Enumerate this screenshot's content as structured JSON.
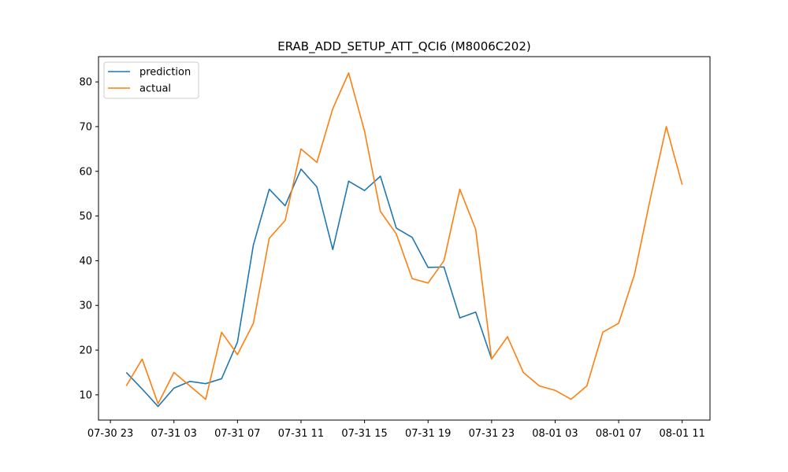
{
  "chart_data": {
    "type": "line",
    "title": "ERAB_ADD_SETUP_ATT_QCI6 (M8006C202)",
    "xlabel": "",
    "ylabel": "",
    "x_start": "2023-07-31T00:00",
    "x_tick_labels": [
      "07-30 23",
      "07-31 03",
      "07-31 07",
      "07-31 11",
      "07-31 15",
      "07-31 19",
      "07-31 23",
      "08-01 03",
      "08-01 07",
      "08-01 11"
    ],
    "x_ticks": [
      "2023-07-30T23:00",
      "2023-07-31T03:00",
      "2023-07-31T07:00",
      "2023-07-31T11:00",
      "2023-07-31T15:00",
      "2023-07-31T19:00",
      "2023-07-31T23:00",
      "2023-08-01T03:00",
      "2023-08-01T07:00",
      "2023-08-01T11:00"
    ],
    "xlim": [
      "2023-07-30T22:15",
      "2023-08-01T12:45"
    ],
    "y_ticks": [
      10,
      20,
      30,
      40,
      50,
      60,
      70,
      80
    ],
    "ylim": [
      4.35,
      85.65
    ],
    "grid": false,
    "legend_position": "upper-left",
    "series": [
      {
        "name": "prediction",
        "color": "#1f77b4",
        "x": [
          "2023-07-31T00:00",
          "2023-07-31T01:00",
          "2023-07-31T02:00",
          "2023-07-31T03:00",
          "2023-07-31T04:00",
          "2023-07-31T05:00",
          "2023-07-31T06:00",
          "2023-07-31T07:00",
          "2023-07-31T08:00",
          "2023-07-31T09:00",
          "2023-07-31T10:00",
          "2023-07-31T11:00",
          "2023-07-31T12:00",
          "2023-07-31T13:00",
          "2023-07-31T14:00",
          "2023-07-31T15:00",
          "2023-07-31T16:00",
          "2023-07-31T17:00",
          "2023-07-31T18:00",
          "2023-07-31T19:00",
          "2023-07-31T20:00",
          "2023-07-31T21:00",
          "2023-07-31T22:00",
          "2023-07-31T23:00"
        ],
        "y": [
          15,
          11.3,
          7.4,
          11.5,
          13,
          12.5,
          13.6,
          21.8,
          43.5,
          56,
          52.3,
          60.5,
          56.5,
          42.5,
          57.8,
          55.7,
          58.9,
          47.3,
          45.2,
          38.5,
          38.6,
          27.2,
          28.5,
          18
        ]
      },
      {
        "name": "actual",
        "color": "#ff7f0e",
        "x": [
          "2023-07-31T00:00",
          "2023-07-31T01:00",
          "2023-07-31T02:00",
          "2023-07-31T03:00",
          "2023-07-31T04:00",
          "2023-07-31T05:00",
          "2023-07-31T06:00",
          "2023-07-31T07:00",
          "2023-07-31T08:00",
          "2023-07-31T09:00",
          "2023-07-31T10:00",
          "2023-07-31T11:00",
          "2023-07-31T12:00",
          "2023-07-31T13:00",
          "2023-07-31T14:00",
          "2023-07-31T15:00",
          "2023-07-31T16:00",
          "2023-07-31T17:00",
          "2023-07-31T18:00",
          "2023-07-31T19:00",
          "2023-07-31T20:00",
          "2023-07-31T21:00",
          "2023-07-31T22:00",
          "2023-07-31T23:00",
          "2023-08-01T00:00",
          "2023-08-01T01:00",
          "2023-08-01T02:00",
          "2023-08-01T03:00",
          "2023-08-01T04:00",
          "2023-08-01T05:00",
          "2023-08-01T06:00",
          "2023-08-01T07:00",
          "2023-08-01T08:00",
          "2023-08-01T09:00",
          "2023-08-01T10:00",
          "2023-08-01T11:00"
        ],
        "y": [
          12,
          18,
          8,
          15,
          12,
          9,
          24,
          19,
          26,
          45,
          49,
          65,
          62,
          74,
          82,
          69,
          51,
          46,
          36,
          35,
          40,
          56,
          47,
          18,
          23,
          15,
          12,
          11,
          9,
          12,
          24,
          26,
          37,
          54,
          70,
          57
        ]
      }
    ]
  }
}
